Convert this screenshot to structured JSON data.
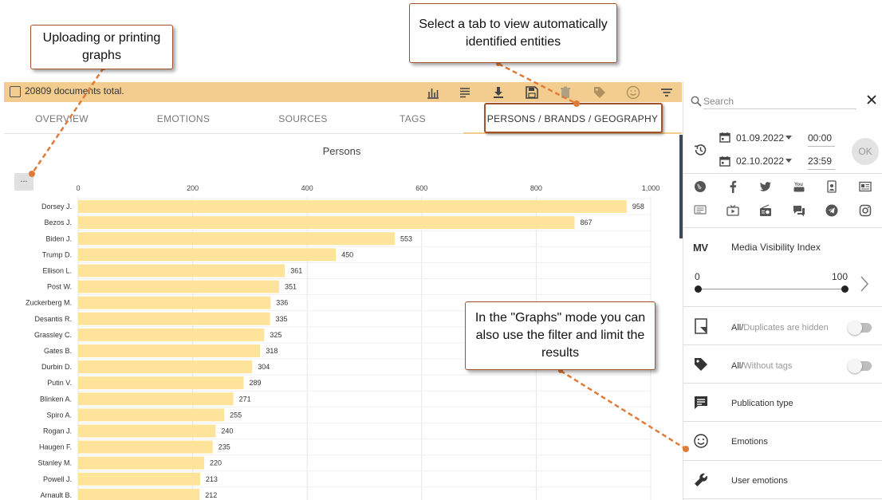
{
  "toolbar": {
    "doc_total": "20809 documents total.",
    "icons": [
      "bar-chart-icon",
      "list-icon",
      "download-icon",
      "save-icon",
      "delete-icon",
      "tag-icon",
      "smile-icon",
      "filter-icon"
    ]
  },
  "tabs": [
    {
      "label": "OVERVIEW",
      "active": false
    },
    {
      "label": "EMOTIONS",
      "active": false
    },
    {
      "label": "SOURCES",
      "active": false
    },
    {
      "label": "TAGS",
      "active": false
    },
    {
      "label": "PERSONS / BRANDS / GEOGRAPHY",
      "active": true
    }
  ],
  "chart_more_label": "...",
  "chart_data": {
    "type": "bar",
    "orientation": "horizontal",
    "title": "Persons",
    "xlim": [
      0,
      1000
    ],
    "xticks": [
      "0",
      "200",
      "400",
      "600",
      "800",
      "1,000"
    ],
    "bar_color": "#fde49a",
    "grid": true,
    "categories": [
      "Dorsey J.",
      "Bezos J.",
      "Biden J.",
      "Trump D.",
      "Ellison L.",
      "Post W.",
      "Zuckerberg M.",
      "Desantis R.",
      "Grassley C.",
      "Gates B.",
      "Durbin D.",
      "Putin V.",
      "Blinken A.",
      "Spiro A.",
      "Rogan J.",
      "Haugen F.",
      "Stanley M.",
      "Powell J.",
      "Arnault B."
    ],
    "values": [
      958,
      867,
      553,
      450,
      361,
      351,
      336,
      335,
      325,
      318,
      304,
      289,
      271,
      255,
      240,
      235,
      220,
      213,
      212
    ]
  },
  "panel": {
    "search_placeholder": "Search",
    "date_from": "01.09.2022",
    "time_from": "00:00",
    "date_to": "02.10.2022",
    "time_to": "23:59",
    "ok_label": "OK",
    "source_icons": [
      "web-icon",
      "facebook-icon",
      "twitter-icon",
      "youtube-icon",
      "profile-icon",
      "news-icon",
      "comment-icon",
      "tv-icon",
      "radio-icon",
      "forum-icon",
      "telegram-icon",
      "instagram-icon"
    ],
    "mv_logo": "MV",
    "mv_label": "Media Visibility Index",
    "range_min": "0",
    "range_max": "100",
    "duplicates_strong": "All/",
    "duplicates_muted": "Duplicates are hidden",
    "tags_strong": "All/",
    "tags_muted": "Without tags",
    "publication_type": "Publication type",
    "emotions": "Emotions",
    "user_emotions": "User emotions"
  },
  "callouts": {
    "upload": "Uploading or printing graphs",
    "tab": "Select a tab to view automatically identified entities",
    "filter": "In the \"Graphs\" mode you can also use the filter and limit the results"
  },
  "colors": {
    "toolbar_bg": "#f2cd8f",
    "callout_border": "#a0522d",
    "arrow": "#e07b39"
  }
}
